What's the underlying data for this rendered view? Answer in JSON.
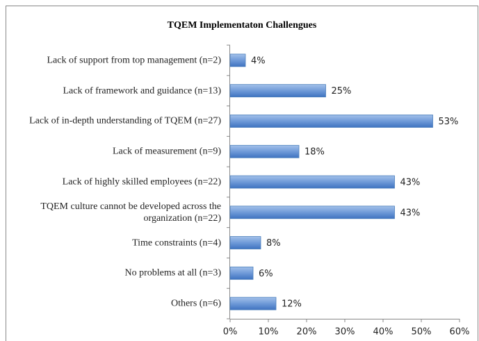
{
  "chart_data": {
    "type": "bar",
    "orientation": "horizontal",
    "title": "TQEM Implementaton Challengues",
    "categories": [
      "Lack of support from top management (n=2)",
      "Lack of framework and guidance (n=13)",
      "Lack of in-depth understanding of TQEM (n=27)",
      "Lack of measurement (n=9)",
      "Lack of highly skilled employees (n=22)",
      "TQEM culture cannot be developed across the organization (n=22)",
      "Time constraints (n=4)",
      "No problems at all (n=3)",
      "Others (n=6)"
    ],
    "values": [
      4,
      25,
      53,
      18,
      43,
      43,
      8,
      6,
      12
    ],
    "value_labels": [
      "4%",
      "25%",
      "53%",
      "18%",
      "43%",
      "43%",
      "8%",
      "6%",
      "12%"
    ],
    "color": "#4a7ebb",
    "xlim": [
      0,
      60
    ],
    "xticks": [
      {
        "value": 0,
        "label": "0%"
      },
      {
        "value": 10,
        "label": "10%"
      },
      {
        "value": 20,
        "label": "20%"
      },
      {
        "value": 30,
        "label": "30%"
      },
      {
        "value": 40,
        "label": "40%"
      },
      {
        "value": 50,
        "label": "50%"
      },
      {
        "value": 60,
        "label": "60%"
      }
    ]
  }
}
